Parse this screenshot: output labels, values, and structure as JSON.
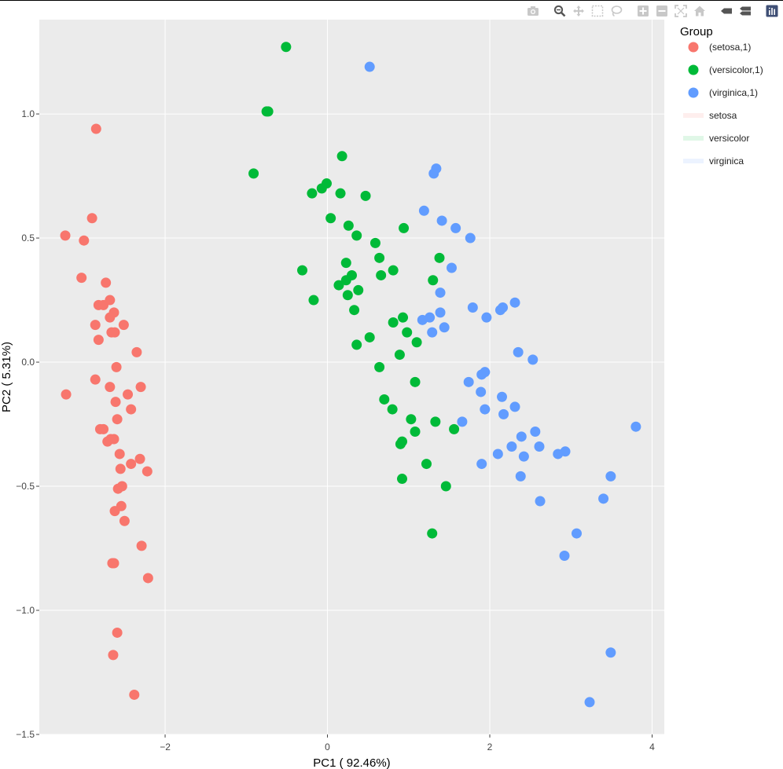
{
  "toolbar": {
    "buttons": [
      {
        "name": "camera-icon",
        "title": "Download plot as a png"
      },
      {
        "name": "zoom-icon",
        "title": "Zoom"
      },
      {
        "name": "pan-icon",
        "title": "Pan"
      },
      {
        "name": "box-select-icon",
        "title": "Box Select"
      },
      {
        "name": "lasso-select-icon",
        "title": "Lasso Select"
      },
      {
        "name": "zoom-in-icon",
        "title": "Zoom in"
      },
      {
        "name": "zoom-out-icon",
        "title": "Zoom out"
      },
      {
        "name": "autoscale-icon",
        "title": "Autoscale"
      },
      {
        "name": "reset-axes-icon",
        "title": "Reset axes"
      },
      {
        "name": "hover-closest-icon",
        "title": "Show closest data on hover"
      },
      {
        "name": "hover-compare-icon",
        "title": "Compare data on hover"
      },
      {
        "name": "plotly-logo-icon",
        "title": "Produced with Plotly"
      }
    ]
  },
  "colors": {
    "setosa": "#F8766D",
    "versicolor": "#00BA38",
    "virginica": "#619CFF",
    "panel": "#EBEBEB",
    "grid": "#FFFFFF"
  },
  "chart_data": {
    "type": "scatter",
    "title": "",
    "xlabel": "PC1 ( 92.46%)",
    "ylabel": "PC2 ( 5.31%)",
    "xlim": [
      -3.55,
      4.15
    ],
    "ylim": [
      -1.5,
      1.38
    ],
    "x_ticks": [
      -2,
      0,
      2,
      4
    ],
    "x_tick_labels": [
      "−2",
      "0",
      "2",
      "4"
    ],
    "y_ticks": [
      -1.5,
      -1.0,
      -0.5,
      0.0,
      0.5,
      1.0
    ],
    "y_tick_labels": [
      "−1.5",
      "−1.0",
      "−0.5",
      "0.0",
      "0.5",
      "1.0"
    ],
    "grid": true,
    "legend": {
      "title": "Group",
      "position": "right",
      "items": [
        {
          "label": "(setosa,1)",
          "kind": "marker",
          "group": "setosa"
        },
        {
          "label": "(versicolor,1)",
          "kind": "marker",
          "group": "versicolor"
        },
        {
          "label": "(virginica,1)",
          "kind": "marker",
          "group": "virginica"
        },
        {
          "label": "setosa",
          "kind": "fill",
          "group": "setosa"
        },
        {
          "label": "versicolor",
          "kind": "fill",
          "group": "versicolor"
        },
        {
          "label": "virginica",
          "kind": "fill",
          "group": "virginica"
        }
      ]
    },
    "series": [
      {
        "name": "(setosa,1)",
        "group": "setosa",
        "points": [
          [
            -2.85,
            0.94
          ],
          [
            -2.9,
            0.58
          ],
          [
            -3.23,
            0.51
          ],
          [
            -3.0,
            0.49
          ],
          [
            -3.03,
            0.34
          ],
          [
            -2.73,
            0.32
          ],
          [
            -2.68,
            0.25
          ],
          [
            -2.82,
            0.23
          ],
          [
            -2.76,
            0.23
          ],
          [
            -2.63,
            0.2
          ],
          [
            -2.68,
            0.18
          ],
          [
            -2.86,
            0.15
          ],
          [
            -2.51,
            0.15
          ],
          [
            -2.62,
            0.12
          ],
          [
            -2.66,
            0.12
          ],
          [
            -2.82,
            0.09
          ],
          [
            -2.35,
            0.04
          ],
          [
            -2.6,
            -0.02
          ],
          [
            -2.86,
            -0.07
          ],
          [
            -3.22,
            -0.13
          ],
          [
            -2.68,
            -0.1
          ],
          [
            -2.3,
            -0.1
          ],
          [
            -2.46,
            -0.13
          ],
          [
            -2.61,
            -0.16
          ],
          [
            -2.42,
            -0.19
          ],
          [
            -2.59,
            -0.23
          ],
          [
            -2.8,
            -0.27
          ],
          [
            -2.76,
            -0.27
          ],
          [
            -2.63,
            -0.31
          ],
          [
            -2.67,
            -0.31
          ],
          [
            -2.71,
            -0.32
          ],
          [
            -2.56,
            -0.37
          ],
          [
            -2.31,
            -0.39
          ],
          [
            -2.42,
            -0.41
          ],
          [
            -2.55,
            -0.43
          ],
          [
            -2.22,
            -0.44
          ],
          [
            -2.53,
            -0.5
          ],
          [
            -2.58,
            -0.51
          ],
          [
            -2.54,
            -0.58
          ],
          [
            -2.62,
            -0.6
          ],
          [
            -2.5,
            -0.64
          ],
          [
            -2.29,
            -0.74
          ],
          [
            -2.63,
            -0.81
          ],
          [
            -2.65,
            -0.81
          ],
          [
            -2.21,
            -0.87
          ],
          [
            -2.59,
            -1.09
          ],
          [
            -2.64,
            -1.18
          ],
          [
            -2.38,
            -1.34
          ]
        ]
      },
      {
        "name": "(versicolor,1)",
        "group": "versicolor",
        "points": [
          [
            -0.51,
            1.27
          ],
          [
            -0.75,
            1.01
          ],
          [
            -0.73,
            1.01
          ],
          [
            0.18,
            0.83
          ],
          [
            -0.91,
            0.76
          ],
          [
            -0.01,
            0.72
          ],
          [
            -0.07,
            0.7
          ],
          [
            -0.19,
            0.68
          ],
          [
            0.16,
            0.68
          ],
          [
            0.47,
            0.67
          ],
          [
            0.04,
            0.58
          ],
          [
            0.26,
            0.55
          ],
          [
            0.94,
            0.54
          ],
          [
            0.36,
            0.51
          ],
          [
            0.59,
            0.48
          ],
          [
            1.38,
            0.42
          ],
          [
            0.64,
            0.42
          ],
          [
            0.23,
            0.4
          ],
          [
            -0.31,
            0.37
          ],
          [
            0.81,
            0.37
          ],
          [
            0.66,
            0.35
          ],
          [
            0.3,
            0.35
          ],
          [
            0.23,
            0.33
          ],
          [
            1.3,
            0.33
          ],
          [
            0.14,
            0.31
          ],
          [
            0.38,
            0.29
          ],
          [
            0.25,
            0.27
          ],
          [
            -0.17,
            0.25
          ],
          [
            0.33,
            0.21
          ],
          [
            0.93,
            0.18
          ],
          [
            0.81,
            0.16
          ],
          [
            0.98,
            0.12
          ],
          [
            0.52,
            0.1
          ],
          [
            1.1,
            0.08
          ],
          [
            0.36,
            0.07
          ],
          [
            0.89,
            0.03
          ],
          [
            0.64,
            -0.02
          ],
          [
            1.08,
            -0.08
          ],
          [
            0.7,
            -0.15
          ],
          [
            0.8,
            -0.19
          ],
          [
            1.03,
            -0.23
          ],
          [
            1.33,
            -0.24
          ],
          [
            1.56,
            -0.27
          ],
          [
            1.08,
            -0.28
          ],
          [
            0.92,
            -0.32
          ],
          [
            0.9,
            -0.33
          ],
          [
            1.22,
            -0.41
          ],
          [
            0.92,
            -0.47
          ],
          [
            1.46,
            -0.5
          ],
          [
            1.29,
            -0.69
          ]
        ]
      },
      {
        "name": "(virginica,1)",
        "group": "virginica",
        "points": [
          [
            0.52,
            1.19
          ],
          [
            1.34,
            0.78
          ],
          [
            1.31,
            0.76
          ],
          [
            1.19,
            0.61
          ],
          [
            1.41,
            0.57
          ],
          [
            1.58,
            0.54
          ],
          [
            1.76,
            0.5
          ],
          [
            1.53,
            0.38
          ],
          [
            1.39,
            0.28
          ],
          [
            2.31,
            0.24
          ],
          [
            1.79,
            0.22
          ],
          [
            2.16,
            0.22
          ],
          [
            2.13,
            0.21
          ],
          [
            1.39,
            0.2
          ],
          [
            1.96,
            0.18
          ],
          [
            1.26,
            0.18
          ],
          [
            1.17,
            0.17
          ],
          [
            1.44,
            0.14
          ],
          [
            1.29,
            0.12
          ],
          [
            2.35,
            0.04
          ],
          [
            2.53,
            0.01
          ],
          [
            1.94,
            -0.04
          ],
          [
            1.9,
            -0.05
          ],
          [
            1.74,
            -0.08
          ],
          [
            1.89,
            -0.12
          ],
          [
            2.15,
            -0.14
          ],
          [
            3.8,
            -0.26
          ],
          [
            2.31,
            -0.18
          ],
          [
            1.94,
            -0.19
          ],
          [
            2.17,
            -0.21
          ],
          [
            1.66,
            -0.24
          ],
          [
            2.56,
            -0.28
          ],
          [
            2.39,
            -0.3
          ],
          [
            2.27,
            -0.34
          ],
          [
            2.61,
            -0.34
          ],
          [
            2.93,
            -0.36
          ],
          [
            2.84,
            -0.37
          ],
          [
            2.1,
            -0.37
          ],
          [
            2.42,
            -0.38
          ],
          [
            1.9,
            -0.41
          ],
          [
            3.49,
            -0.46
          ],
          [
            2.38,
            -0.46
          ],
          [
            3.4,
            -0.55
          ],
          [
            2.62,
            -0.56
          ],
          [
            3.07,
            -0.69
          ],
          [
            2.92,
            -0.78
          ],
          [
            3.49,
            -1.17
          ],
          [
            3.23,
            -1.37
          ]
        ]
      }
    ]
  }
}
